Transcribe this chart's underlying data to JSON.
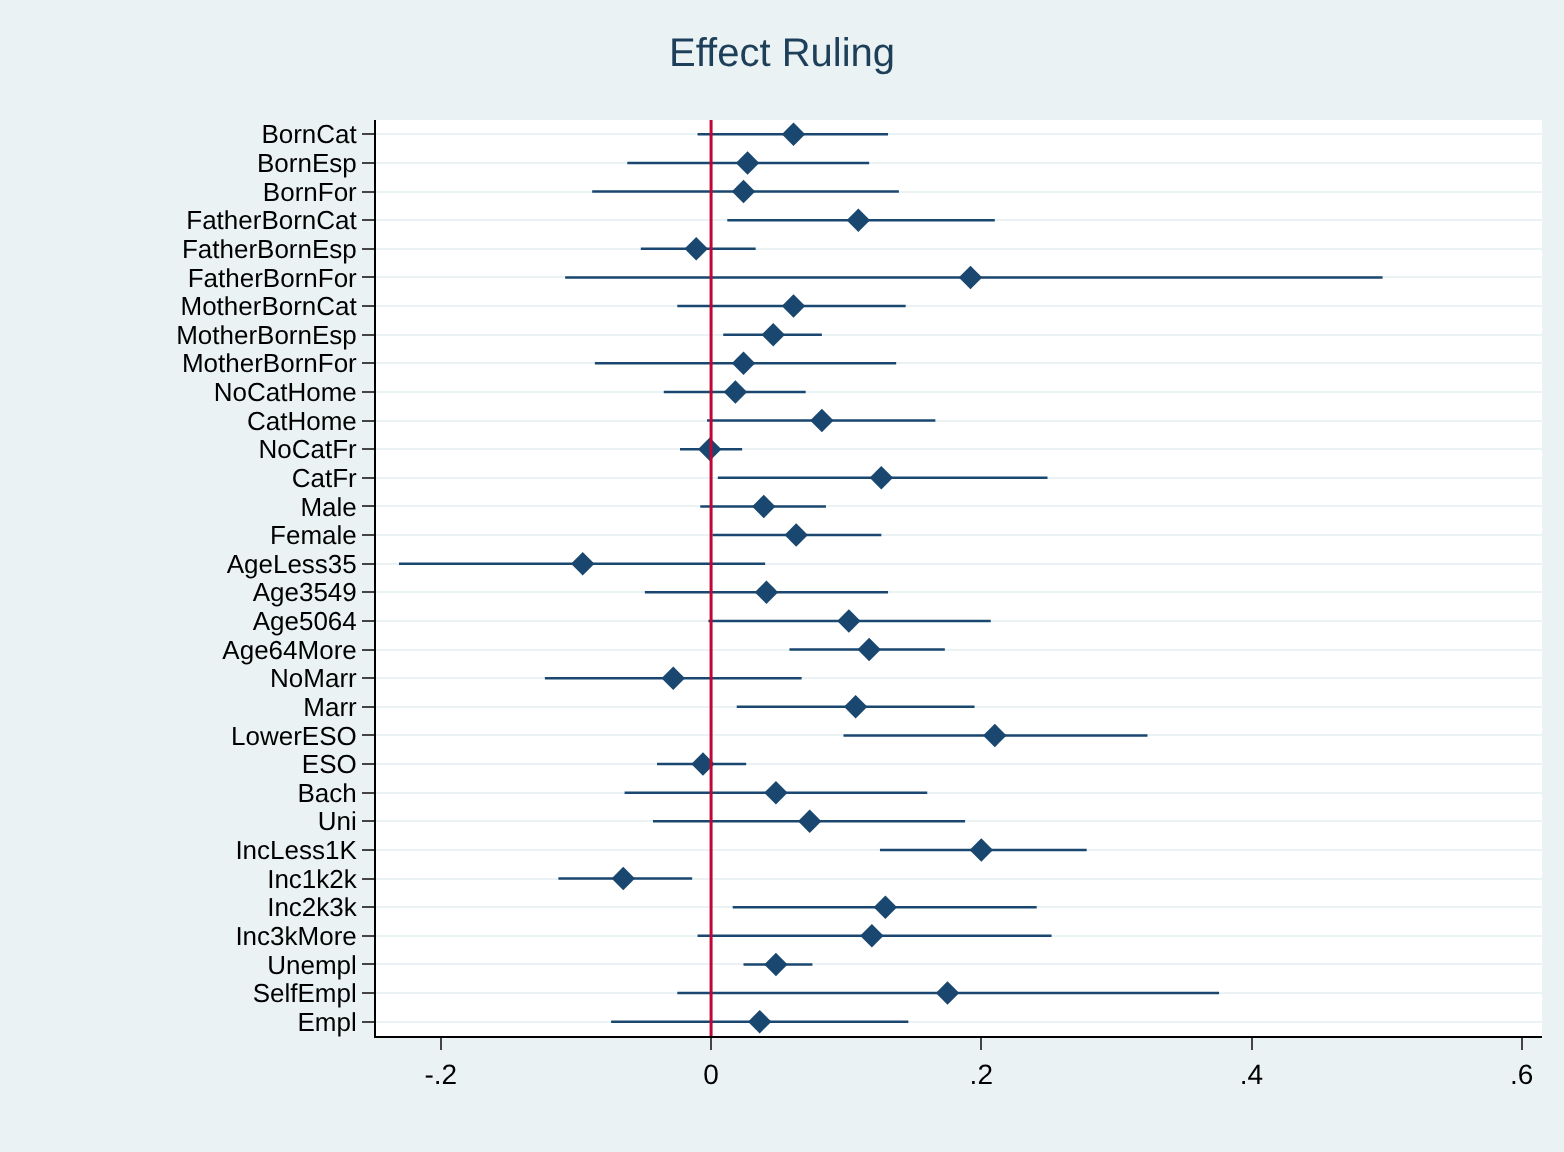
{
  "chart_data": {
    "type": "scatter",
    "orientation": "horizontal",
    "title": "Effect Ruling",
    "categories": [
      "BornCat",
      "BornEsp",
      "BornFor",
      "FatherBornCat",
      "FatherBornEsp",
      "FatherBornFor",
      "MotherBornCat",
      "MotherBornEsp",
      "MotherBornFor",
      "NoCatHome",
      "CatHome",
      "NoCatFr",
      "CatFr",
      "Male",
      "Female",
      "AgeLess35",
      "Age3549",
      "Age5064",
      "Age64More",
      "NoMarr",
      "Marr",
      "LowerESO",
      "ESO",
      "Bach",
      "Uni",
      "IncLess1K",
      "Inc1k2k",
      "Inc2k3k",
      "Inc3kMore",
      "Unempl",
      "SelfEmpl",
      "Empl"
    ],
    "series": [
      {
        "color": "#1a476f",
        "values": [
          0.061,
          0.027,
          0.024,
          0.109,
          -0.011,
          0.192,
          0.061,
          0.046,
          0.024,
          0.018,
          0.082,
          -0.001,
          0.126,
          0.039,
          0.063,
          -0.095,
          0.041,
          0.102,
          0.117,
          -0.028,
          0.107,
          0.21,
          -0.006,
          0.048,
          0.073,
          0.2,
          -0.065,
          0.129,
          0.119,
          0.048,
          0.175,
          0.036
        ],
        "errors": [
          [
            -0.01,
            0.131
          ],
          [
            -0.062,
            0.117
          ],
          [
            -0.088,
            0.139
          ],
          [
            0.012,
            0.21
          ],
          [
            -0.052,
            0.033
          ],
          [
            -0.108,
            0.497
          ],
          [
            -0.025,
            0.144
          ],
          [
            0.009,
            0.082
          ],
          [
            -0.086,
            0.137
          ],
          [
            -0.035,
            0.07
          ],
          [
            -0.003,
            0.166
          ],
          [
            -0.023,
            0.023
          ],
          [
            0.005,
            0.249
          ],
          [
            -0.008,
            0.085
          ],
          [
            0.001,
            0.126
          ],
          [
            -0.231,
            0.04
          ],
          [
            -0.049,
            0.131
          ],
          [
            -0.002,
            0.207
          ],
          [
            0.058,
            0.173
          ],
          [
            -0.123,
            0.067
          ],
          [
            0.019,
            0.195
          ],
          [
            0.098,
            0.323
          ],
          [
            -0.04,
            0.026
          ],
          [
            -0.064,
            0.16
          ],
          [
            -0.043,
            0.188
          ],
          [
            0.125,
            0.278
          ],
          [
            -0.113,
            -0.014
          ],
          [
            0.016,
            0.241
          ],
          [
            -0.01,
            0.252
          ],
          [
            0.024,
            0.075
          ],
          [
            -0.025,
            0.376
          ],
          [
            -0.074,
            0.146
          ]
        ]
      }
    ],
    "xlim": [
      -0.248,
      0.615
    ],
    "xticks": [
      {
        "value": -0.2,
        "label": "-.2"
      },
      0,
      {
        "value": 0.2,
        "label": ".2"
      },
      {
        "value": 0.4,
        "label": ".4"
      },
      {
        "value": 0.6,
        "label": ".6"
      }
    ],
    "ref_lines": [
      {
        "axis": "x",
        "value": 0,
        "color": "#c10534"
      }
    ],
    "grid": "y",
    "marker": "diamond"
  }
}
